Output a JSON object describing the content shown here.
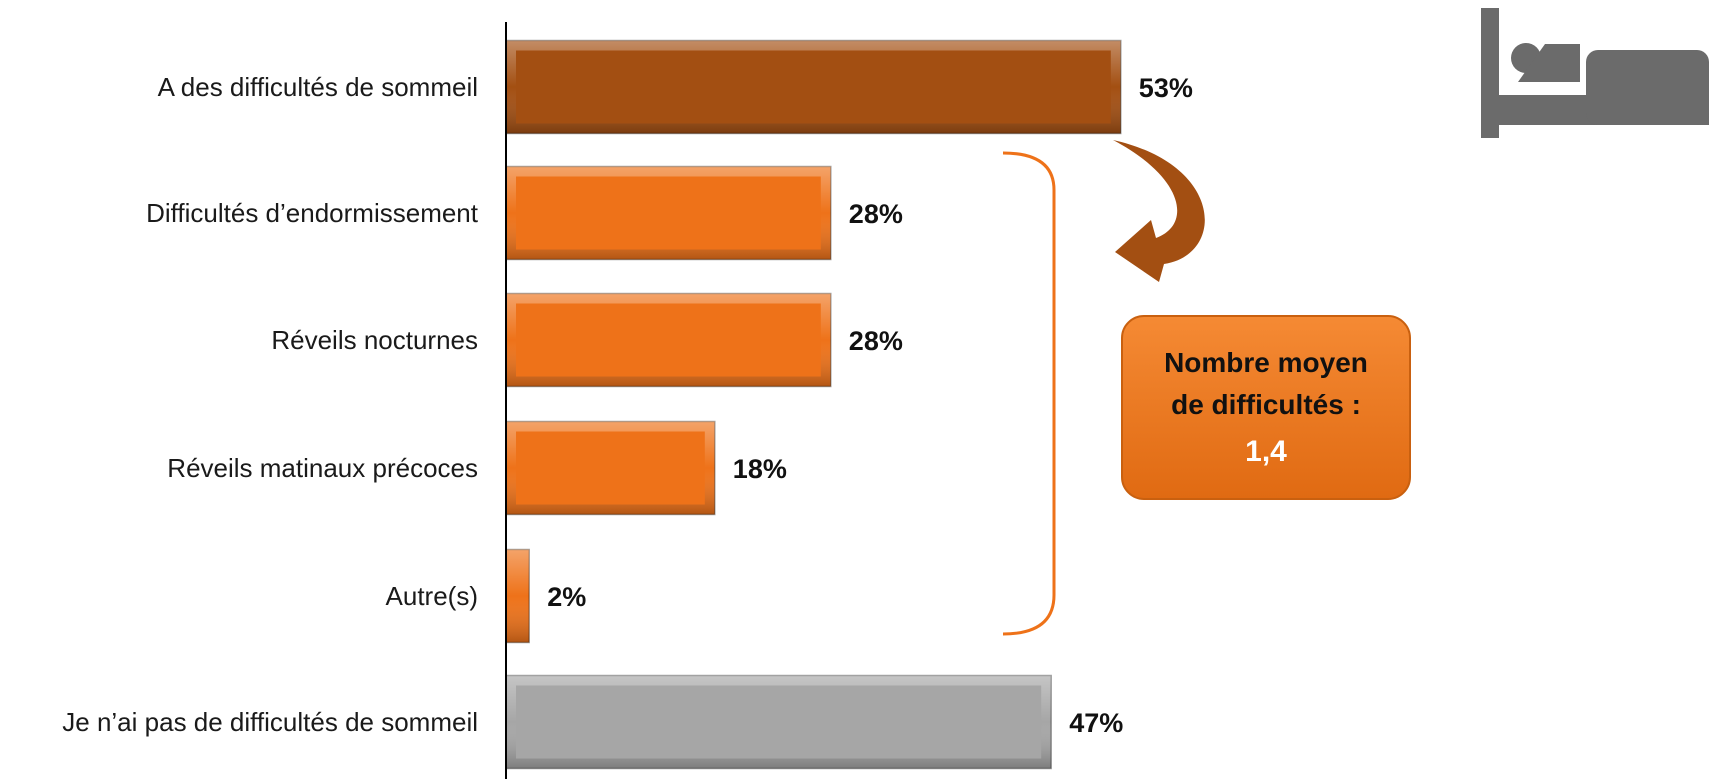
{
  "chart_data": {
    "type": "bar",
    "orientation": "horizontal",
    "categories": [
      "A des difficultés de sommeil",
      "Difficultés d’endormissement",
      "Réveils nocturnes",
      "Réveils matinaux précoces",
      "Autre(s)",
      "Je n’ai pas de difficultés de sommeil"
    ],
    "values": [
      53,
      28,
      28,
      18,
      2,
      47
    ],
    "value_labels": [
      "53%",
      "28%",
      "28%",
      "18%",
      "2%",
      "47%"
    ],
    "xlim": [
      0,
      100
    ],
    "grid": false,
    "legend": "none",
    "colors": [
      "#a34f12",
      "#ee7219",
      "#ee7219",
      "#ee7219",
      "#ee7219",
      "#a6a6a6"
    ]
  },
  "callout": {
    "line1": "Nombre moyen",
    "line2": "de difficultés :",
    "value": "1,4"
  },
  "icon": {
    "name": "bed-icon",
    "color": "#6b6b6b"
  },
  "accent_color": "#ee7219",
  "dark_accent_color": "#a34f12"
}
